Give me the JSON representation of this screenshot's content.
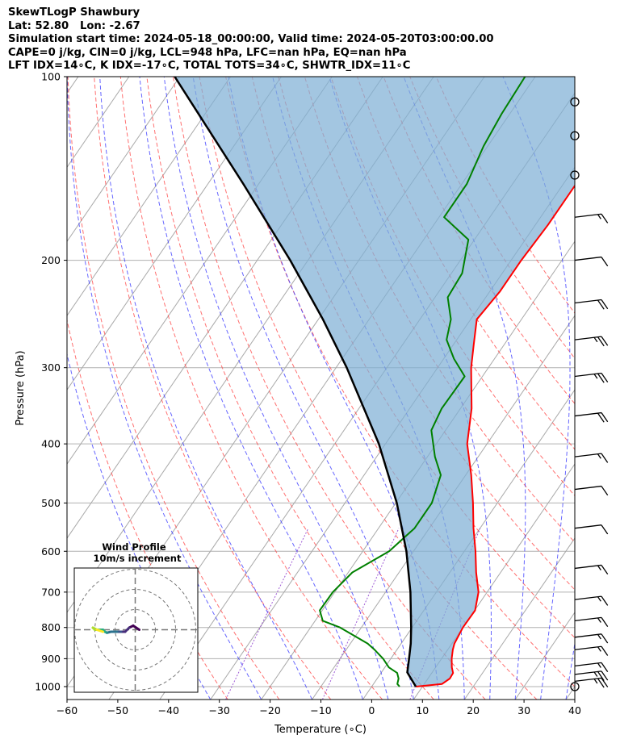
{
  "header": {
    "line1": "SkewTLogP Shawbury",
    "line2": "Lat: 52.80   Lon: -2.67",
    "line3": "Simulation start time: 2024-05-18_00:00:00, Valid time: 2024-05-20T03:00:00.00",
    "line4": "CAPE=0 j/kg, CIN=0 j/kg, LCL=948 hPa, LFC=nan hPa, EQ=nan hPa",
    "line5": "LFT IDX=14∘C, K IDX=-17∘C, TOTAL TOTS=34∘C, SHWTR_IDX=11∘C"
  },
  "inset": {
    "title": "Wind Profile",
    "subtitle": "10m/s increment"
  },
  "chart_data": {
    "type": "line",
    "xlabel": "Temperature (∘C)",
    "ylabel": "Pressure (hPa)",
    "xlim": [
      -60,
      40
    ],
    "ylim": [
      1050,
      100
    ],
    "y_scale": "log",
    "skew": true,
    "grid": true,
    "x_ticks": [
      -60,
      -50,
      -40,
      -30,
      -20,
      -10,
      0,
      10,
      20,
      30,
      40
    ],
    "y_ticks": [
      100,
      200,
      300,
      400,
      500,
      600,
      700,
      800,
      900,
      1000
    ],
    "series": [
      {
        "role": "temperature",
        "color": "#ff0000",
        "points": [
          [
            1000,
            8.7
          ],
          [
            990,
            13.5
          ],
          [
            970,
            14.3
          ],
          [
            950,
            14.2
          ],
          [
            930,
            13.2
          ],
          [
            900,
            12.0
          ],
          [
            870,
            11.0
          ],
          [
            850,
            10.5
          ],
          [
            800,
            10.0
          ],
          [
            750,
            10.1
          ],
          [
            700,
            8.3
          ],
          [
            650,
            5.2
          ],
          [
            600,
            2.2
          ],
          [
            550,
            -1.3
          ],
          [
            500,
            -4.8
          ],
          [
            450,
            -8.9
          ],
          [
            400,
            -13.9
          ],
          [
            350,
            -17.8
          ],
          [
            300,
            -23.4
          ],
          [
            275,
            -26.0
          ],
          [
            250,
            -28.8
          ],
          [
            225,
            -28.0
          ],
          [
            200,
            -28.0
          ],
          [
            175,
            -27.5
          ],
          [
            150,
            -27.5
          ],
          [
            125,
            -26.8
          ],
          [
            110,
            -27.3
          ],
          [
            100,
            -27.8
          ]
        ]
      },
      {
        "role": "dewpoint",
        "color": "#008000",
        "points": [
          [
            1000,
            5.5
          ],
          [
            990,
            4.7
          ],
          [
            970,
            4.2
          ],
          [
            950,
            3.2
          ],
          [
            930,
            0.8
          ],
          [
            900,
            -1.5
          ],
          [
            870,
            -4.4
          ],
          [
            850,
            -6.6
          ],
          [
            800,
            -14.2
          ],
          [
            780,
            -18.5
          ],
          [
            750,
            -20.5
          ],
          [
            700,
            -20.4
          ],
          [
            650,
            -19.2
          ],
          [
            600,
            -14.8
          ],
          [
            550,
            -12.9
          ],
          [
            500,
            -12.9
          ],
          [
            450,
            -14.9
          ],
          [
            420,
            -18.5
          ],
          [
            380,
            -22.8
          ],
          [
            350,
            -23.7
          ],
          [
            310,
            -23.5
          ],
          [
            290,
            -28.0
          ],
          [
            270,
            -32.0
          ],
          [
            250,
            -33.9
          ],
          [
            230,
            -37.5
          ],
          [
            210,
            -37.9
          ],
          [
            185,
            -41.2
          ],
          [
            170,
            -49.0
          ],
          [
            150,
            -49.0
          ],
          [
            130,
            -50.8
          ],
          [
            115,
            -51.6
          ],
          [
            100,
            -52.0
          ]
        ]
      },
      {
        "role": "parcel",
        "color": "#000000",
        "points": [
          [
            1000,
            8.7
          ],
          [
            948,
            5.1
          ],
          [
            900,
            3.6
          ],
          [
            850,
            1.9
          ],
          [
            800,
            -0.2
          ],
          [
            700,
            -5.1
          ],
          [
            600,
            -11.4
          ],
          [
            500,
            -19.8
          ],
          [
            400,
            -31.3
          ],
          [
            300,
            -47.9
          ],
          [
            250,
            -59.1
          ],
          [
            200,
            -73.5
          ],
          [
            150,
            -93.0
          ],
          [
            100,
            -121.0
          ]
        ]
      }
    ],
    "wind_barbs": [
      {
        "pressure": 1000,
        "shape": "calm"
      },
      {
        "pressure": 980,
        "barbs": [
          1.0,
          1.0,
          0.5
        ]
      },
      {
        "pressure": 955,
        "barbs": [
          1.0,
          1.0,
          0.5
        ]
      },
      {
        "pressure": 925,
        "barbs": [
          1.0,
          0.5
        ]
      },
      {
        "pressure": 870,
        "barbs": [
          1.0,
          0.5
        ]
      },
      {
        "pressure": 830,
        "barbs": [
          1.0,
          0.5
        ]
      },
      {
        "pressure": 780,
        "barbs": [
          1.0,
          0.5
        ]
      },
      {
        "pressure": 720,
        "barbs": [
          1.0,
          0.5
        ]
      },
      {
        "pressure": 640,
        "barbs": [
          1.0,
          0.5
        ]
      },
      {
        "pressure": 550,
        "barbs": [
          1.0
        ]
      },
      {
        "pressure": 475,
        "barbs": [
          1.0
        ]
      },
      {
        "pressure": 420,
        "barbs": [
          1.0,
          0.5
        ]
      },
      {
        "pressure": 360,
        "barbs": [
          1.0,
          1.0
        ]
      },
      {
        "pressure": 310,
        "barbs": [
          1.0,
          1.0,
          0.5
        ]
      },
      {
        "pressure": 270,
        "barbs": [
          1.0,
          1.0,
          0.5
        ]
      },
      {
        "pressure": 235,
        "barbs": [
          1.0,
          1.0
        ]
      },
      {
        "pressure": 200,
        "barbs": [
          1.0
        ]
      },
      {
        "pressure": 170,
        "barbs": [
          1.0,
          0.5
        ]
      },
      {
        "pressure": 145,
        "shape": "calm"
      },
      {
        "pressure": 125,
        "shape": "calm"
      },
      {
        "pressure": 110,
        "shape": "calm"
      }
    ],
    "hodograph": {
      "ring_increment_ms": 10,
      "rings": 3,
      "points": [
        [
          2,
          0
        ],
        [
          -1,
          2
        ],
        [
          -3,
          1
        ],
        [
          -5,
          -1
        ],
        [
          -7,
          -1
        ],
        [
          -9,
          -1
        ],
        [
          -12,
          -1
        ],
        [
          -14,
          -1.5
        ],
        [
          -15,
          -1
        ],
        [
          -16,
          0
        ],
        [
          -18,
          0
        ],
        [
          -20,
          0
        ],
        [
          -21,
          1
        ],
        [
          -19,
          0
        ],
        [
          -16,
          -1
        ]
      ]
    }
  }
}
